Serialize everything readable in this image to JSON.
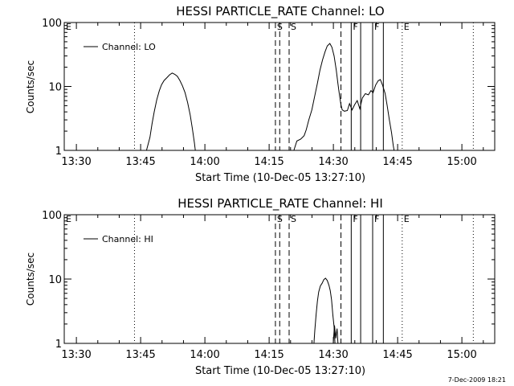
{
  "footer": {
    "timestamp": "7-Dec-2009 18:21"
  },
  "chart_data": [
    {
      "type": "line",
      "title": "HESSI PARTICLE_RATE Channel: LO",
      "xlabel": "Start Time (10-Dec-05 13:27:10)",
      "ylabel": "Counts/sec",
      "x_unit": "minutes after 13:27:10",
      "xlim": [
        0,
        100.5
      ],
      "ylim": [
        1,
        100
      ],
      "yscale": "log",
      "x_ticks": [
        2.833,
        17.833,
        32.833,
        47.833,
        62.833,
        77.833,
        92.833
      ],
      "x_tick_labels": [
        "13:30",
        "13:45",
        "14:00",
        "14:15",
        "14:30",
        "14:45",
        "15:00"
      ],
      "y_tick_labels": [
        "1",
        "10",
        "100"
      ],
      "legend": "Channel: LO",
      "legend_position": "top-left",
      "markers": [
        {
          "x": 16.4,
          "style": "dotted",
          "label": ""
        },
        {
          "x": 49.3,
          "style": "dashed",
          "label": "S"
        },
        {
          "x": 50.3,
          "style": "dashed",
          "label": ""
        },
        {
          "x": 52.5,
          "style": "dashed",
          "label": "S"
        },
        {
          "x": 64.6,
          "style": "dashed",
          "label": ""
        },
        {
          "x": 67.0,
          "style": "solid",
          "label": "F"
        },
        {
          "x": 69.2,
          "style": "solid",
          "label": ""
        },
        {
          "x": 72.0,
          "style": "solid",
          "label": "F"
        },
        {
          "x": 74.5,
          "style": "solid",
          "label": ""
        },
        {
          "x": 78.9,
          "style": "dotted",
          "label": "E"
        },
        {
          "x": 95.5,
          "style": "dotted",
          "label": ""
        }
      ],
      "corner_label": "E",
      "series": [
        {
          "name": "Channel: LO",
          "segments": [
            [
              [
                19.2,
                1
              ],
              [
                20.0,
                1.6
              ],
              [
                20.5,
                2.6
              ],
              [
                21.0,
                4.0
              ],
              [
                21.6,
                6.2
              ],
              [
                22.2,
                8.6
              ],
              [
                22.7,
                10.6
              ],
              [
                23.3,
                12.4
              ],
              [
                24.0,
                13.8
              ],
              [
                24.6,
                15.2
              ],
              [
                25.2,
                16.2
              ],
              [
                25.8,
                15.5
              ],
              [
                26.4,
                14.4
              ],
              [
                27.0,
                12.4
              ],
              [
                27.6,
                10.2
              ],
              [
                28.2,
                8.0
              ],
              [
                28.8,
                5.6
              ],
              [
                29.4,
                3.6
              ],
              [
                29.9,
                2.2
              ],
              [
                30.4,
                1.3
              ],
              [
                30.6,
                1
              ]
            ],
            [
              [
                53.6,
                1
              ],
              [
                54.3,
                1.4
              ],
              [
                55.2,
                1.5
              ],
              [
                56.0,
                1.7
              ],
              [
                56.5,
                2.1
              ],
              [
                57.1,
                3.0
              ],
              [
                57.8,
                4.3
              ],
              [
                58.5,
                7.2
              ],
              [
                59.1,
                11.2
              ],
              [
                59.7,
                18.0
              ],
              [
                60.3,
                26.0
              ],
              [
                60.9,
                35.0
              ],
              [
                61.4,
                43.0
              ],
              [
                62.0,
                47.0
              ],
              [
                62.5,
                41.0
              ],
              [
                63.0,
                30.0
              ],
              [
                63.5,
                18.0
              ],
              [
                63.9,
                11.0
              ],
              [
                64.3,
                7.0
              ],
              [
                64.6,
                5.2
              ],
              [
                64.9,
                4.3
              ],
              [
                65.4,
                4.1
              ],
              [
                66.1,
                4.2
              ],
              [
                66.6,
                5.4
              ],
              [
                67.2,
                4.3
              ],
              [
                67.8,
                5.2
              ],
              [
                68.4,
                6.0
              ],
              [
                69.0,
                4.5
              ],
              [
                69.6,
                6.6
              ],
              [
                70.3,
                7.7
              ],
              [
                71.0,
                7.4
              ],
              [
                71.6,
                8.6
              ],
              [
                72.1,
                8.0
              ],
              [
                72.7,
                10.5
              ],
              [
                73.3,
                12.3
              ],
              [
                73.8,
                12.8
              ],
              [
                74.3,
                10.5
              ],
              [
                74.9,
                7.8
              ],
              [
                75.4,
                5.0
              ],
              [
                75.9,
                3.0
              ],
              [
                76.4,
                1.9
              ],
              [
                76.8,
                1.2
              ],
              [
                77.0,
                1
              ]
            ]
          ]
        }
      ]
    },
    {
      "type": "line",
      "title": "HESSI PARTICLE_RATE Channel: HI",
      "xlabel": "Start Time (10-Dec-05 13:27:10)",
      "ylabel": "Counts/sec",
      "x_unit": "minutes after 13:27:10",
      "xlim": [
        0,
        100.5
      ],
      "ylim": [
        1,
        100
      ],
      "yscale": "log",
      "x_ticks": [
        2.833,
        17.833,
        32.833,
        47.833,
        62.833,
        77.833,
        92.833
      ],
      "x_tick_labels": [
        "13:30",
        "13:45",
        "14:00",
        "14:15",
        "14:30",
        "14:45",
        "15:00"
      ],
      "y_tick_labels": [
        "1",
        "10",
        "100"
      ],
      "legend": "Channel: HI",
      "legend_position": "top-left",
      "markers": [
        {
          "x": 16.4,
          "style": "dotted",
          "label": ""
        },
        {
          "x": 49.3,
          "style": "dashed",
          "label": "S"
        },
        {
          "x": 50.3,
          "style": "dashed",
          "label": ""
        },
        {
          "x": 52.5,
          "style": "dashed",
          "label": "S"
        },
        {
          "x": 64.6,
          "style": "dashed",
          "label": ""
        },
        {
          "x": 67.0,
          "style": "solid",
          "label": "F"
        },
        {
          "x": 69.2,
          "style": "solid",
          "label": ""
        },
        {
          "x": 72.0,
          "style": "solid",
          "label": "F"
        },
        {
          "x": 74.5,
          "style": "solid",
          "label": ""
        },
        {
          "x": 78.9,
          "style": "dotted",
          "label": "E"
        },
        {
          "x": 95.5,
          "style": "dotted",
          "label": ""
        }
      ],
      "corner_label": "E",
      "series": [
        {
          "name": "Channel: HI",
          "segments": [
            [
              [
                58.3,
                1
              ],
              [
                58.5,
                1.6
              ],
              [
                58.8,
                2.8
              ],
              [
                59.1,
                4.5
              ],
              [
                59.4,
                6.3
              ],
              [
                59.8,
                7.8
              ],
              [
                60.2,
                8.6
              ],
              [
                60.6,
                9.8
              ],
              [
                61.0,
                10.3
              ],
              [
                61.4,
                9.5
              ],
              [
                61.8,
                8.0
              ],
              [
                62.1,
                6.6
              ],
              [
                62.4,
                4.8
              ],
              [
                62.7,
                2.8
              ],
              [
                63.0,
                1.8
              ],
              [
                63.2,
                1
              ]
            ],
            [
              [
                62.8,
                1
              ],
              [
                63.1,
                1.9
              ],
              [
                63.4,
                1.2
              ],
              [
                63.7,
                1.7
              ],
              [
                63.9,
                1
              ]
            ]
          ]
        }
      ]
    }
  ]
}
